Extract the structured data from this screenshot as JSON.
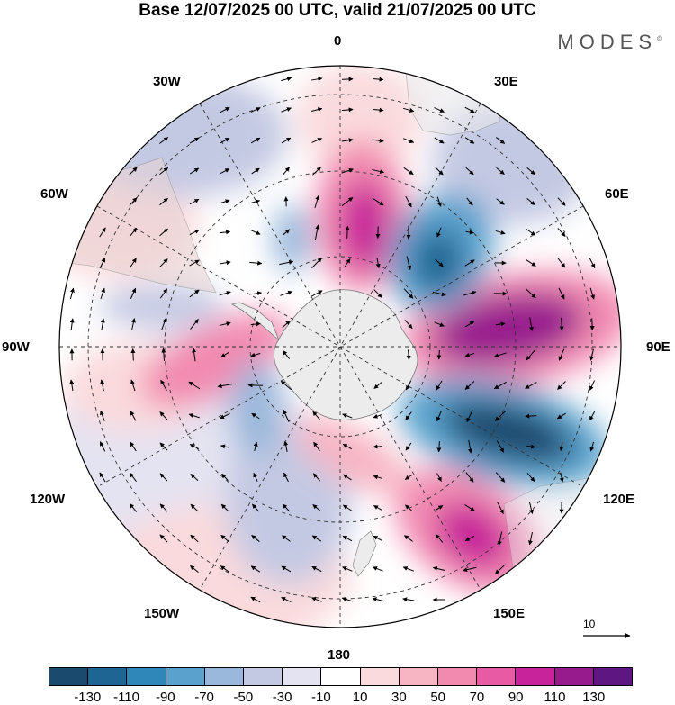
{
  "title": "Base 12/07/2025 00 UTC, valid 21/07/2025 00 UTC",
  "brand": "MODES",
  "brand_mark": "©",
  "map": {
    "projection": "south-polar-stereographic",
    "longitude_labels": [
      "0",
      "30E",
      "60E",
      "90E",
      "120E",
      "150E",
      "180",
      "150W",
      "120W",
      "90W",
      "60W",
      "30W"
    ],
    "reference_vector_label": "10"
  },
  "colorbar": {
    "colors": [
      "#1a4a6e",
      "#1f6593",
      "#2f86b8",
      "#5aa2cd",
      "#9ab8db",
      "#c4c9e3",
      "#e4e3f1",
      "#ffffff",
      "#fadadd",
      "#f7b5c4",
      "#f28ab0",
      "#e85aa4",
      "#c8239a",
      "#981b8e",
      "#5e1683"
    ],
    "tick_labels": [
      "-130",
      "-110",
      "-90",
      "-70",
      "-50",
      "-30",
      "-10",
      "10",
      "30",
      "50",
      "70",
      "90",
      "110",
      "130"
    ]
  },
  "icons": {
    "reference_arrow": "arrow-right-icon"
  }
}
